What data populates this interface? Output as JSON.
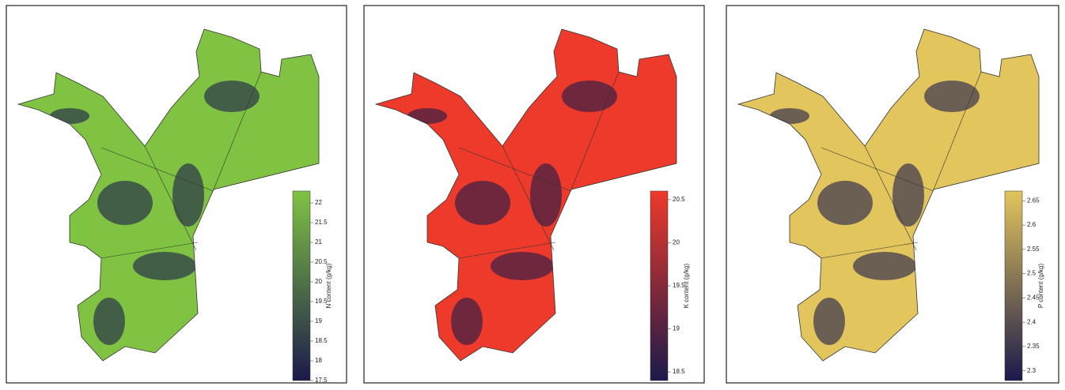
{
  "panels": [
    {
      "colorbar": {
        "label": "N content (g/kg)",
        "low_color": "#1b1a4b",
        "high_color": "#80c343",
        "range": [
          17.5,
          22.3
        ],
        "ticks": [
          17.5,
          18,
          18.5,
          19,
          19.5,
          20,
          20.5,
          21,
          21.5,
          22
        ]
      }
    },
    {
      "colorbar": {
        "label": "K content (g/kg)",
        "low_color": "#1b1a4b",
        "high_color": "#ee3a2a",
        "range": [
          18.4,
          20.6
        ],
        "ticks": [
          18.5,
          19,
          19.5,
          20,
          20.5
        ]
      }
    },
    {
      "colorbar": {
        "label": "P content (g/kg)",
        "low_color": "#1b1a4b",
        "high_color": "#e2c55c",
        "range": [
          2.28,
          2.67
        ],
        "ticks": [
          2.3,
          2.35,
          2.4,
          2.45,
          2.5,
          2.55,
          2.6,
          2.65
        ]
      }
    }
  ]
}
